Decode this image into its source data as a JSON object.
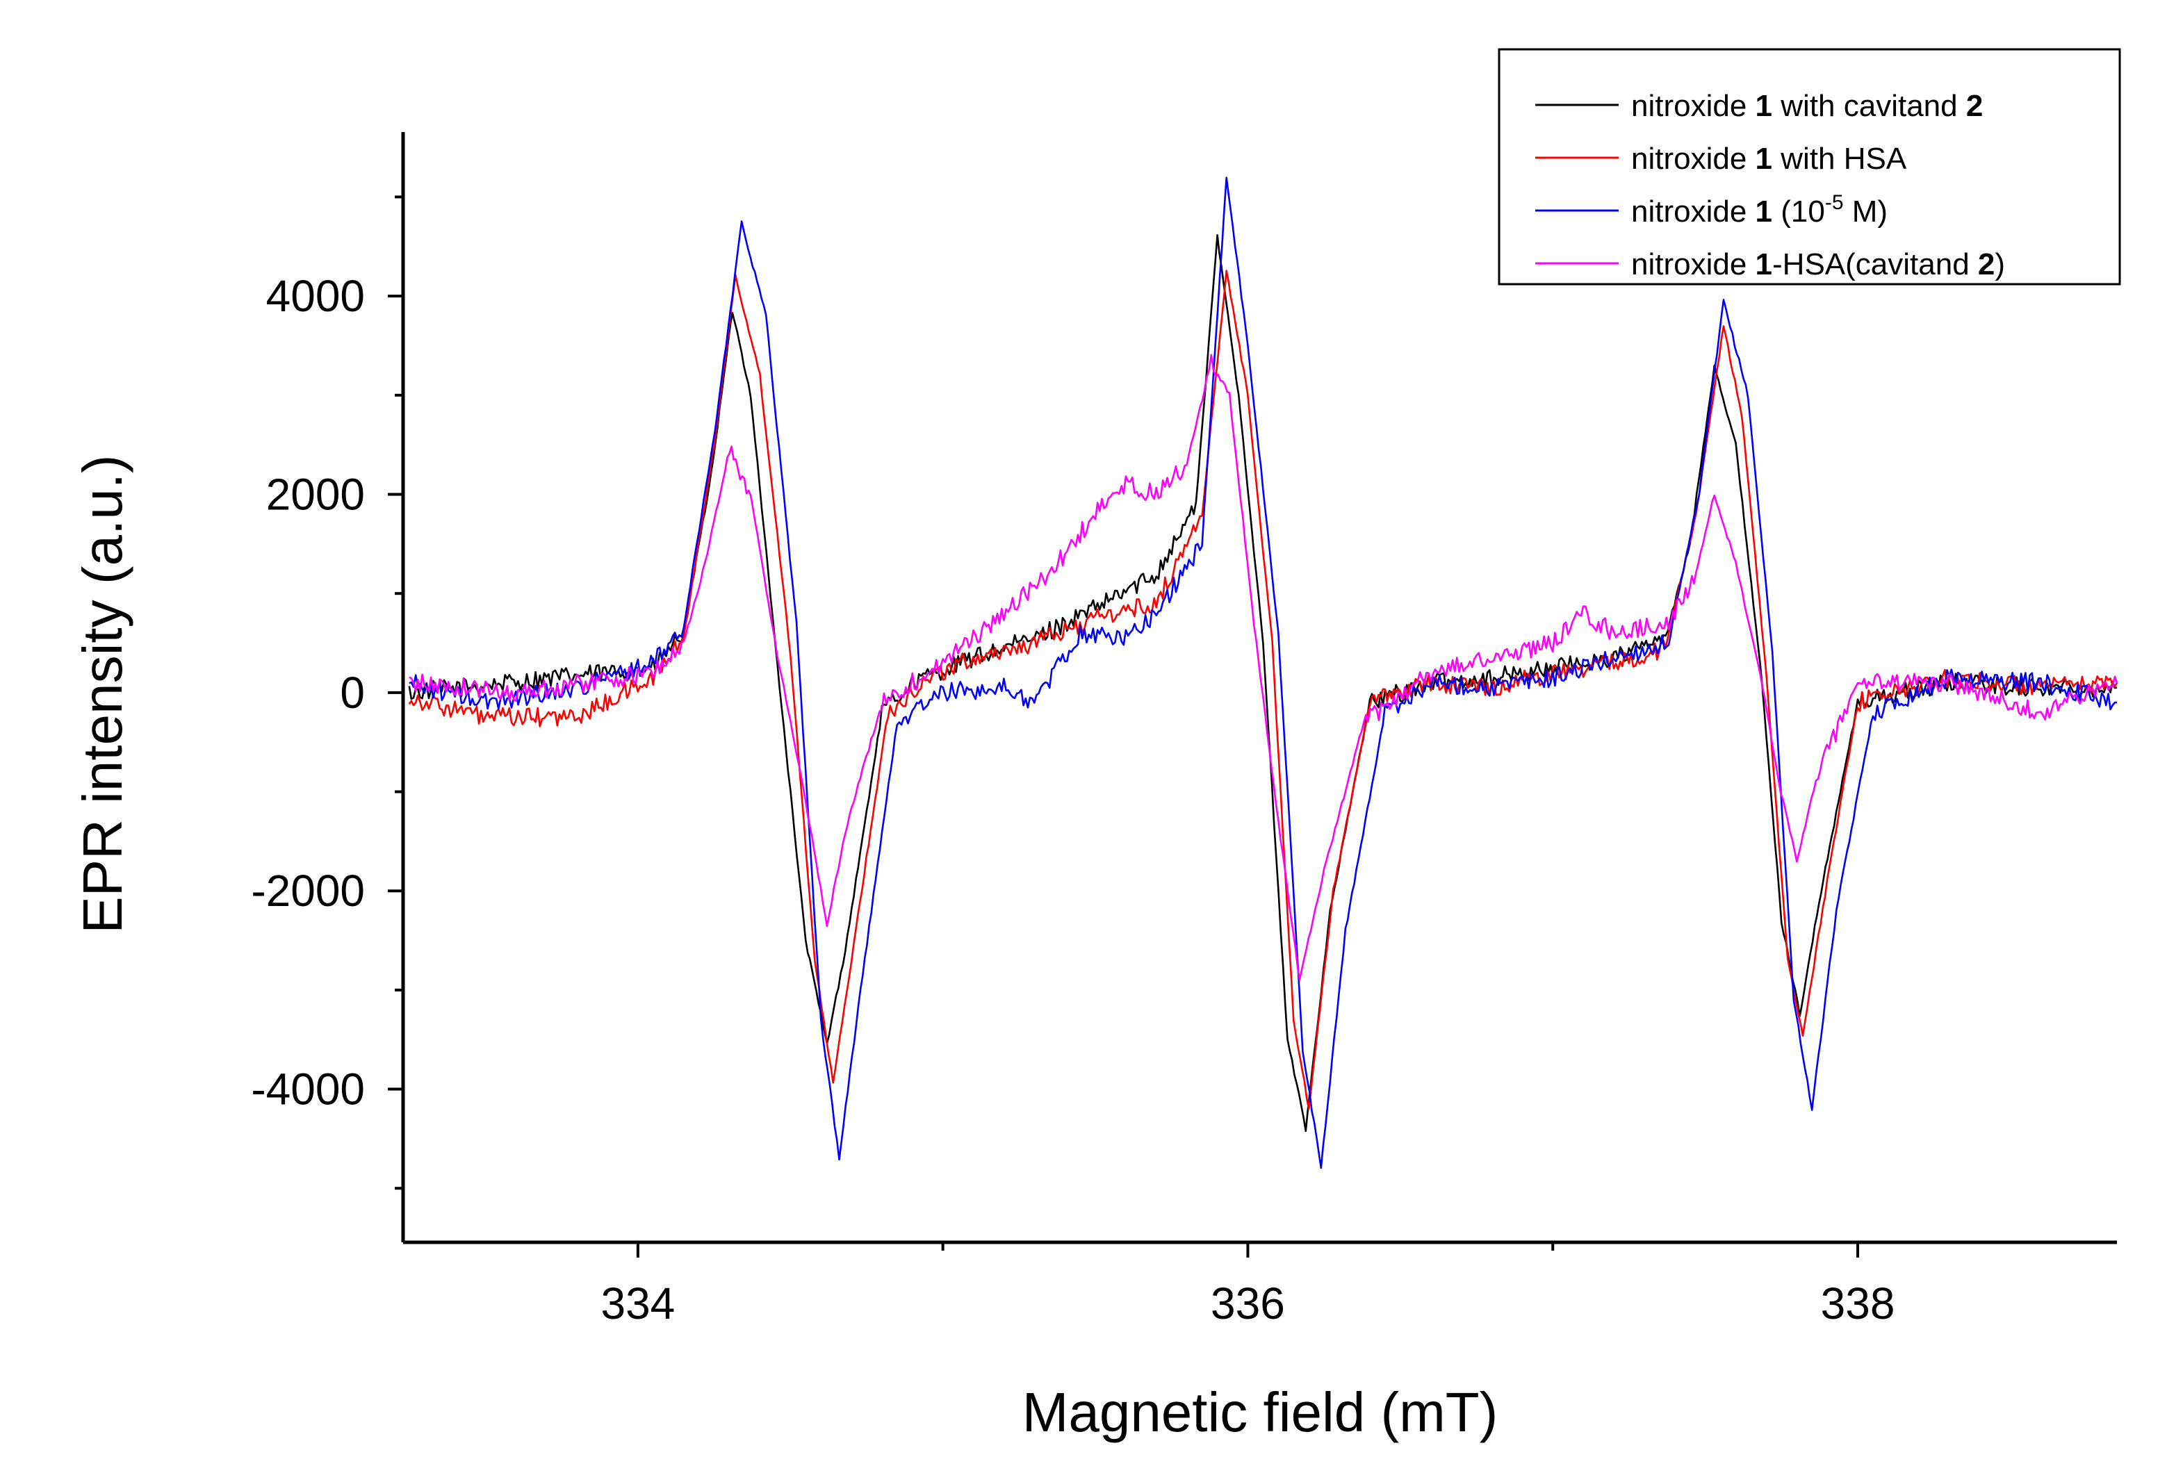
{
  "chart_data": {
    "type": "line",
    "title": "",
    "xlabel": "Magnetic field (mT)",
    "ylabel": "EPR intensity (a.u.)",
    "xlim": [
      333.23,
      338.85
    ],
    "ylim": [
      -5545,
      5655
    ],
    "xticks": [
      334,
      336,
      338
    ],
    "xtick_labels": [
      "334",
      "336",
      "338"
    ],
    "yticks": [
      -4000,
      -2000,
      0,
      2000,
      4000
    ],
    "ytick_labels": [
      "-4000",
      "-2000",
      "0",
      "2000",
      "4000"
    ],
    "grid": false,
    "legend_position": "top-right",
    "series": [
      {
        "name": "nitroxide 1 with cavitand 2",
        "legend_parts": [
          [
            "nitroxide ",
            false
          ],
          [
            "1",
            true
          ],
          [
            " with cavitand ",
            false
          ],
          [
            "2",
            true
          ]
        ],
        "color": "#000000",
        "points": [
          [
            333.25,
            0
          ],
          [
            334.05,
            250
          ],
          [
            334.15,
            600
          ],
          [
            334.24,
            2200
          ],
          [
            334.31,
            3850
          ],
          [
            334.37,
            3000
          ],
          [
            334.45,
            500
          ],
          [
            334.55,
            -2500
          ],
          [
            334.62,
            -3550
          ],
          [
            334.68,
            -2600
          ],
          [
            334.8,
            -200
          ],
          [
            334.9,
            100
          ],
          [
            335.1,
            350
          ],
          [
            335.3,
            550
          ],
          [
            335.5,
            850
          ],
          [
            335.7,
            1200
          ],
          [
            335.83,
            1900
          ],
          [
            335.9,
            4600
          ],
          [
            335.97,
            3000
          ],
          [
            336.05,
            500
          ],
          [
            336.13,
            -3500
          ],
          [
            336.19,
            -4400
          ],
          [
            336.27,
            -2200
          ],
          [
            336.4,
            -100
          ],
          [
            336.6,
            100
          ],
          [
            336.8,
            150
          ],
          [
            337.0,
            250
          ],
          [
            337.2,
            350
          ],
          [
            337.37,
            550
          ],
          [
            337.45,
            1500
          ],
          [
            337.53,
            3300
          ],
          [
            337.6,
            2500
          ],
          [
            337.68,
            300
          ],
          [
            337.75,
            -2300
          ],
          [
            337.81,
            -3250
          ],
          [
            337.88,
            -2000
          ],
          [
            338.0,
            -100
          ],
          [
            338.3,
            100
          ],
          [
            338.6,
            50
          ],
          [
            338.85,
            50
          ]
        ]
      },
      {
        "name": "nitroxide 1 with HSA",
        "legend_parts": [
          [
            "nitroxide ",
            false
          ],
          [
            "1",
            true
          ],
          [
            " with HSA",
            false
          ]
        ],
        "color": "#ff0000",
        "points": [
          [
            333.25,
            -50
          ],
          [
            333.5,
            -250
          ],
          [
            333.8,
            -250
          ],
          [
            334.05,
            150
          ],
          [
            334.15,
            550
          ],
          [
            334.25,
            2500
          ],
          [
            334.32,
            4200
          ],
          [
            334.4,
            3200
          ],
          [
            334.5,
            400
          ],
          [
            334.58,
            -2700
          ],
          [
            334.64,
            -3950
          ],
          [
            334.7,
            -2700
          ],
          [
            334.82,
            -200
          ],
          [
            334.95,
            150
          ],
          [
            335.1,
            350
          ],
          [
            335.3,
            500
          ],
          [
            335.5,
            750
          ],
          [
            335.7,
            900
          ],
          [
            335.85,
            1800
          ],
          [
            335.93,
            4250
          ],
          [
            336.0,
            3000
          ],
          [
            336.08,
            500
          ],
          [
            336.15,
            -3300
          ],
          [
            336.2,
            -4200
          ],
          [
            336.28,
            -2000
          ],
          [
            336.4,
            -100
          ],
          [
            336.6,
            100
          ],
          [
            336.8,
            50
          ],
          [
            337.0,
            200
          ],
          [
            337.2,
            300
          ],
          [
            337.37,
            450
          ],
          [
            337.47,
            1800
          ],
          [
            337.56,
            3700
          ],
          [
            337.62,
            2800
          ],
          [
            337.7,
            200
          ],
          [
            337.77,
            -2700
          ],
          [
            337.82,
            -3450
          ],
          [
            337.9,
            -1900
          ],
          [
            338.0,
            -100
          ],
          [
            338.3,
            150
          ],
          [
            338.6,
            50
          ],
          [
            338.85,
            100
          ]
        ]
      },
      {
        "name": "nitroxide 1 (10^-5 M)",
        "legend_parts": [
          [
            "nitroxide ",
            false
          ],
          [
            "1",
            true
          ],
          [
            " (10",
            false
          ],
          [
            "-5",
            false
          ],
          [
            " M)",
            false
          ]
        ],
        "color": "#0000ff",
        "points": [
          [
            333.25,
            100
          ],
          [
            333.5,
            -100
          ],
          [
            333.8,
            50
          ],
          [
            334.05,
            300
          ],
          [
            334.15,
            650
          ],
          [
            334.26,
            2800
          ],
          [
            334.34,
            4750
          ],
          [
            334.42,
            3800
          ],
          [
            334.52,
            700
          ],
          [
            334.6,
            -3300
          ],
          [
            334.66,
            -4700
          ],
          [
            334.73,
            -3000
          ],
          [
            334.85,
            -300
          ],
          [
            335.0,
            0
          ],
          [
            335.2,
            50
          ],
          [
            335.3,
            -100
          ],
          [
            335.45,
            600
          ],
          [
            335.6,
            550
          ],
          [
            335.7,
            800
          ],
          [
            335.85,
            1500
          ],
          [
            335.93,
            5200
          ],
          [
            336.0,
            3500
          ],
          [
            336.1,
            600
          ],
          [
            336.18,
            -3600
          ],
          [
            336.24,
            -4800
          ],
          [
            336.32,
            -2400
          ],
          [
            336.45,
            -200
          ],
          [
            336.6,
            100
          ],
          [
            336.8,
            50
          ],
          [
            337.0,
            150
          ],
          [
            337.2,
            350
          ],
          [
            337.38,
            500
          ],
          [
            337.48,
            2000
          ],
          [
            337.56,
            3950
          ],
          [
            337.64,
            3000
          ],
          [
            337.72,
            400
          ],
          [
            337.79,
            -3100
          ],
          [
            337.85,
            -4200
          ],
          [
            337.93,
            -2200
          ],
          [
            338.05,
            -200
          ],
          [
            338.3,
            150
          ],
          [
            338.6,
            100
          ],
          [
            338.85,
            -100
          ]
        ]
      },
      {
        "name": "nitroxide 1-HSA(cavitand 2)",
        "legend_parts": [
          [
            "nitroxide ",
            false
          ],
          [
            "1",
            true
          ],
          [
            "-HSA(cavitand ",
            false
          ],
          [
            "2",
            true
          ],
          [
            ")",
            false
          ]
        ],
        "color": "#ff00ff",
        "points": [
          [
            333.25,
            100
          ],
          [
            333.6,
            0
          ],
          [
            334.05,
            200
          ],
          [
            334.15,
            500
          ],
          [
            334.22,
            1300
          ],
          [
            334.3,
            2450
          ],
          [
            334.37,
            2000
          ],
          [
            334.45,
            500
          ],
          [
            334.55,
            -1100
          ],
          [
            334.62,
            -2350
          ],
          [
            334.68,
            -1400
          ],
          [
            334.8,
            -100
          ],
          [
            335.0,
            300
          ],
          [
            335.2,
            800
          ],
          [
            335.35,
            1200
          ],
          [
            335.5,
            1800
          ],
          [
            335.6,
            2100
          ],
          [
            335.7,
            2000
          ],
          [
            335.8,
            2300
          ],
          [
            335.88,
            3350
          ],
          [
            335.94,
            3000
          ],
          [
            336.02,
            700
          ],
          [
            336.1,
            -1300
          ],
          [
            336.17,
            -2900
          ],
          [
            336.25,
            -1800
          ],
          [
            336.38,
            -300
          ],
          [
            336.6,
            200
          ],
          [
            336.8,
            350
          ],
          [
            337.0,
            500
          ],
          [
            337.1,
            800
          ],
          [
            337.2,
            600
          ],
          [
            337.38,
            700
          ],
          [
            337.47,
            1200
          ],
          [
            337.53,
            2000
          ],
          [
            337.6,
            1300
          ],
          [
            337.68,
            200
          ],
          [
            337.74,
            -900
          ],
          [
            337.8,
            -1700
          ],
          [
            337.87,
            -800
          ],
          [
            338.0,
            100
          ],
          [
            338.3,
            100
          ],
          [
            338.6,
            -200
          ],
          [
            338.85,
            100
          ]
        ]
      }
    ]
  }
}
